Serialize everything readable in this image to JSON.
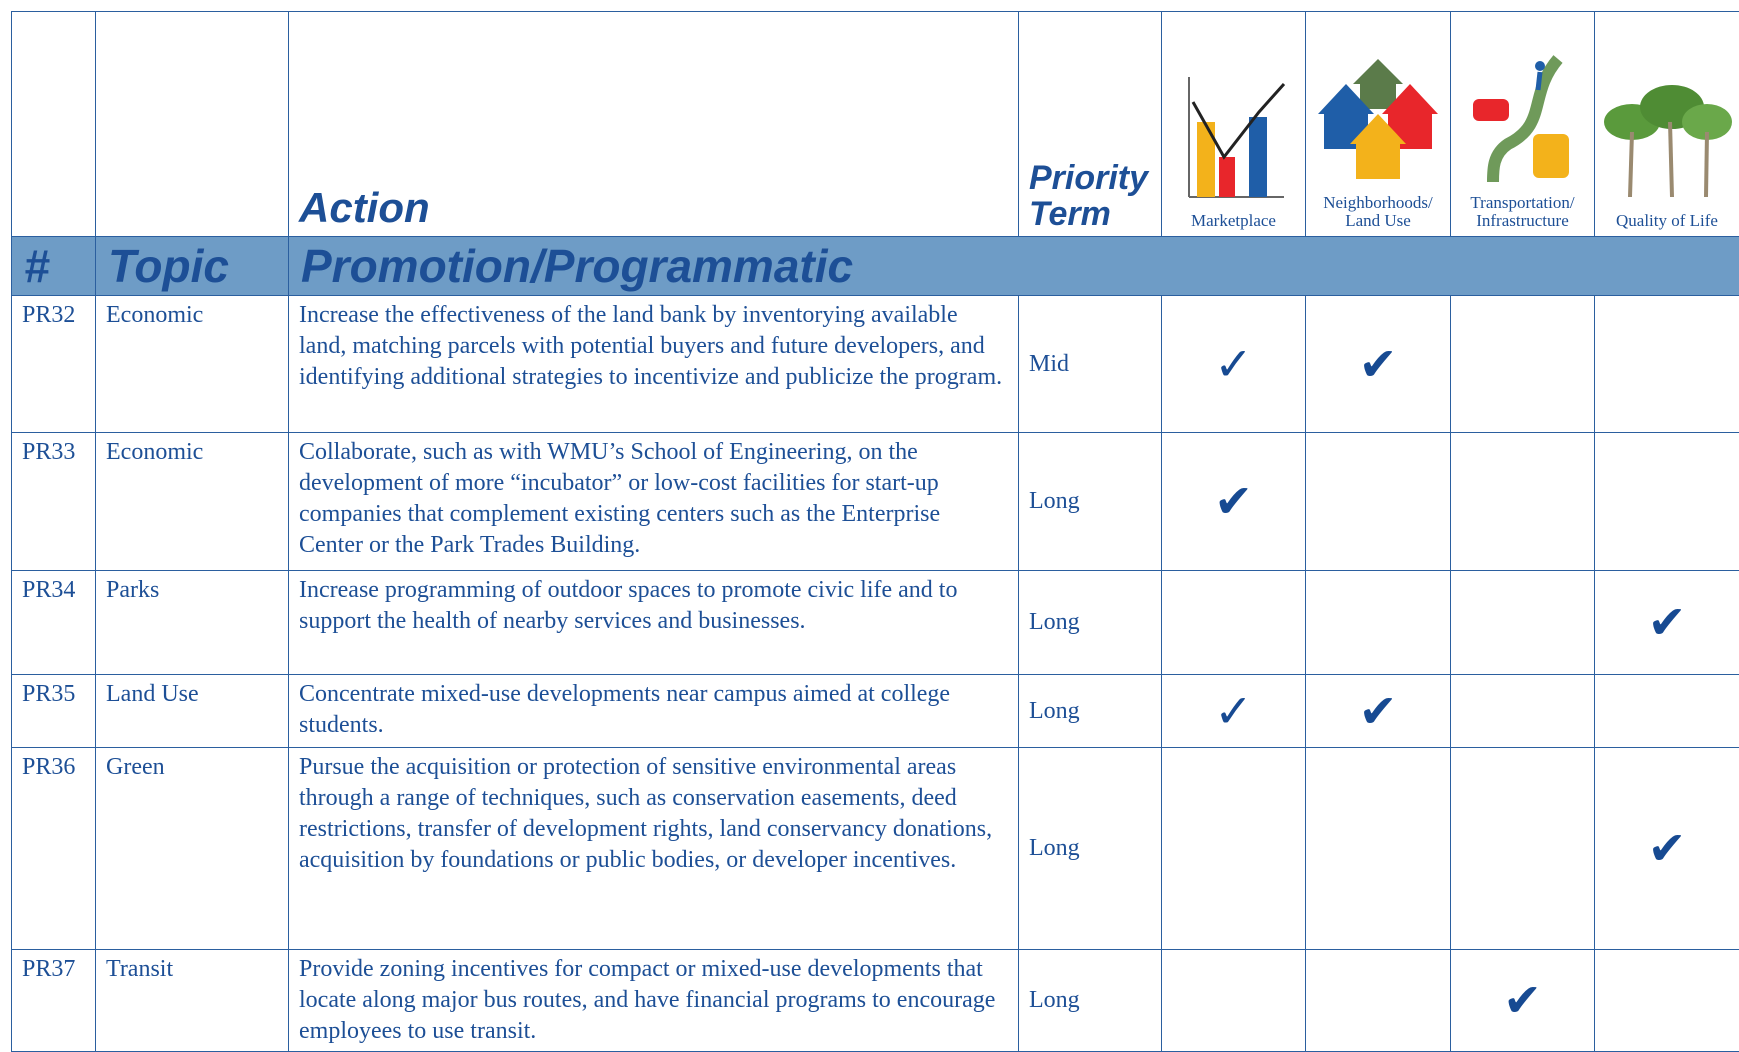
{
  "header": {
    "columns": [
      "Action",
      "Priority Term",
      "Marketplace",
      "Neighborhoods/ Land Use",
      "Transportation/ Infrastructure",
      "Quality of Life"
    ]
  },
  "band": [
    "#",
    "Topic",
    "Promotion/Programmatic"
  ],
  "rows": [
    {
      "id": "PR32",
      "topic": "Economic",
      "action": "Increase the effectiveness of the land bank by inventorying available land, matching parcels with potential buyers and future developers, and identifying additional strategies to incentivize and publicize the program.",
      "term": "Mid",
      "checks": [
        "✓",
        "✔",
        null,
        null
      ]
    },
    {
      "id": "PR33",
      "topic": "Economic",
      "action": "Collaborate, such as with WMU’s School of Engineering, on the development of more “incubator” or low-cost facilities for start-up companies that complement existing centers such as the Enterprise Center or the Park Trades Building.",
      "term": "Long",
      "checks": [
        "✔",
        null,
        null,
        null
      ]
    },
    {
      "id": "PR34",
      "topic": "Parks",
      "action": "Increase programming of outdoor spaces to promote civic life and to support the health of nearby services and businesses.",
      "term": "Long",
      "checks": [
        null,
        null,
        null,
        "✔"
      ]
    },
    {
      "id": "PR35",
      "topic": "Land Use",
      "action": "Concentrate mixed-use developments near campus aimed at college students.",
      "term": "Long",
      "checks": [
        "✓",
        "✔",
        null,
        null
      ]
    },
    {
      "id": "PR36",
      "topic": "Green",
      "action": "Pursue the acquisition or protection of sensitive environmental areas through a range of techniques, such as conservation easements, deed restrictions, transfer of development rights, land conservancy donations, acquisition by foundations or public bodies, or developer incentives.",
      "term": "Long",
      "checks": [
        null,
        null,
        null,
        "✔"
      ]
    },
    {
      "id": "PR37",
      "topic": "Transit",
      "action": "Provide zoning incentives for compact or mixed-use developments that locate along major bus routes, and have financial programs to encourage employees to use transit.",
      "term": "Long",
      "checks": [
        null,
        null,
        "✔",
        null
      ]
    }
  ]
}
